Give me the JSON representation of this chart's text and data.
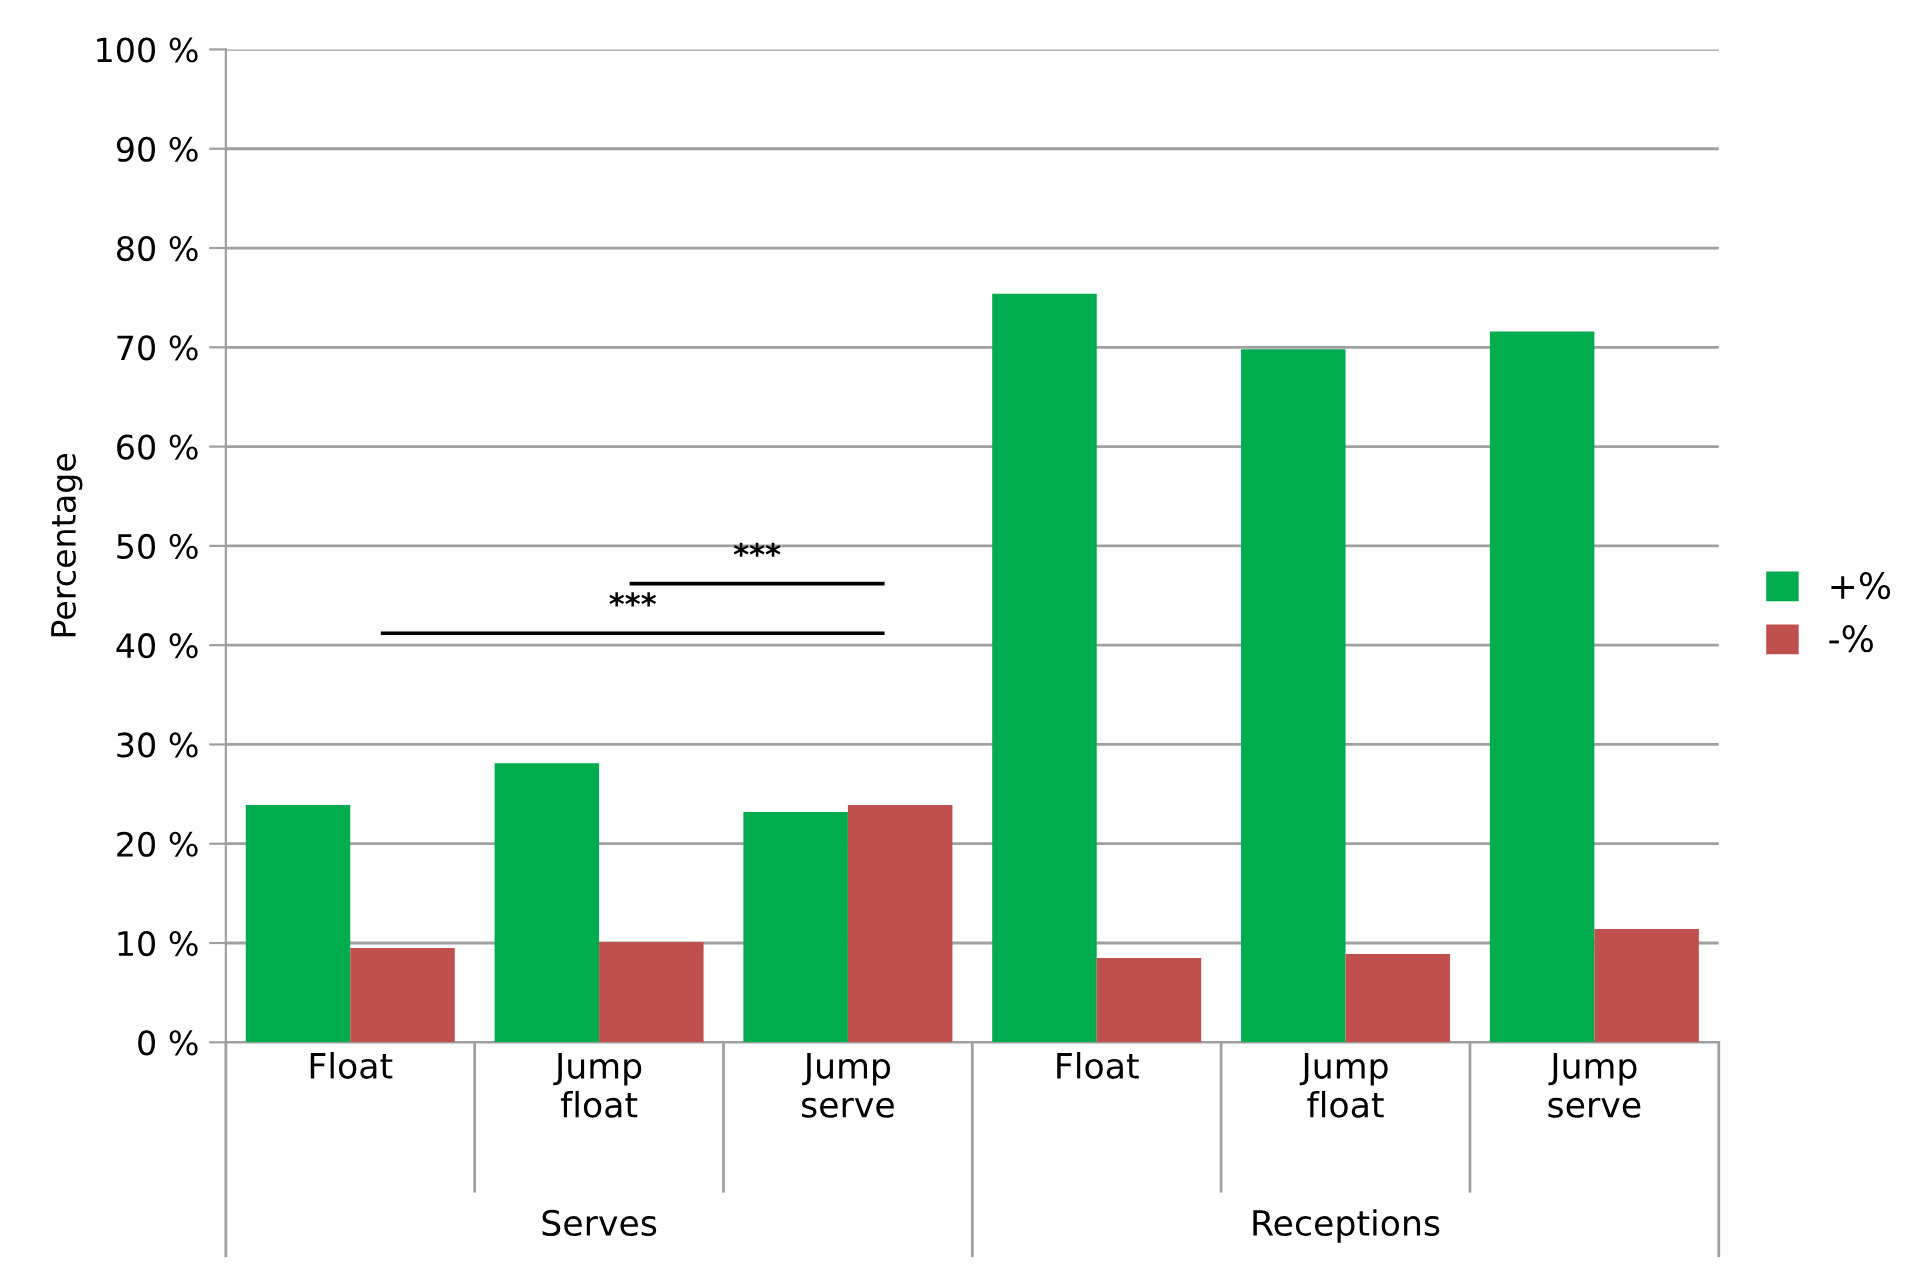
{
  "chart_data": {
    "type": "bar",
    "ylabel": "Percentage",
    "categories": [
      "Float",
      "Jump\nfloat",
      "Jump\nserve",
      "Float",
      "Jump\nfloat",
      "Jump\nserve"
    ],
    "series": [
      {
        "name": "+%",
        "color": "#00ac4e",
        "values": [
          23.9,
          28.1,
          23.2,
          75.4,
          69.8,
          71.6
        ]
      },
      {
        "name": "-%",
        "color": "#c0504d",
        "values": [
          9.5,
          10.1,
          23.9,
          8.5,
          8.9,
          11.4
        ]
      }
    ],
    "ylim": [
      0,
      100
    ],
    "yticks": [
      {
        "value": 0,
        "label": "0 %"
      },
      {
        "value": 10,
        "label": "10 %"
      },
      {
        "value": 20,
        "label": "20 %"
      },
      {
        "value": 30,
        "label": "30 %"
      },
      {
        "value": 40,
        "label": "40 %"
      },
      {
        "value": 50,
        "label": "50 %"
      },
      {
        "value": 60,
        "label": "60 %"
      },
      {
        "value": 70,
        "label": "70 %"
      },
      {
        "value": 80,
        "label": "80 %"
      },
      {
        "value": 90,
        "label": "90 %"
      },
      {
        "value": 100,
        "label": "100 %"
      }
    ],
    "grid": "y",
    "legend": "right",
    "annotations": [
      "Serves",
      "Receptions",
      "***",
      "***"
    ]
  }
}
